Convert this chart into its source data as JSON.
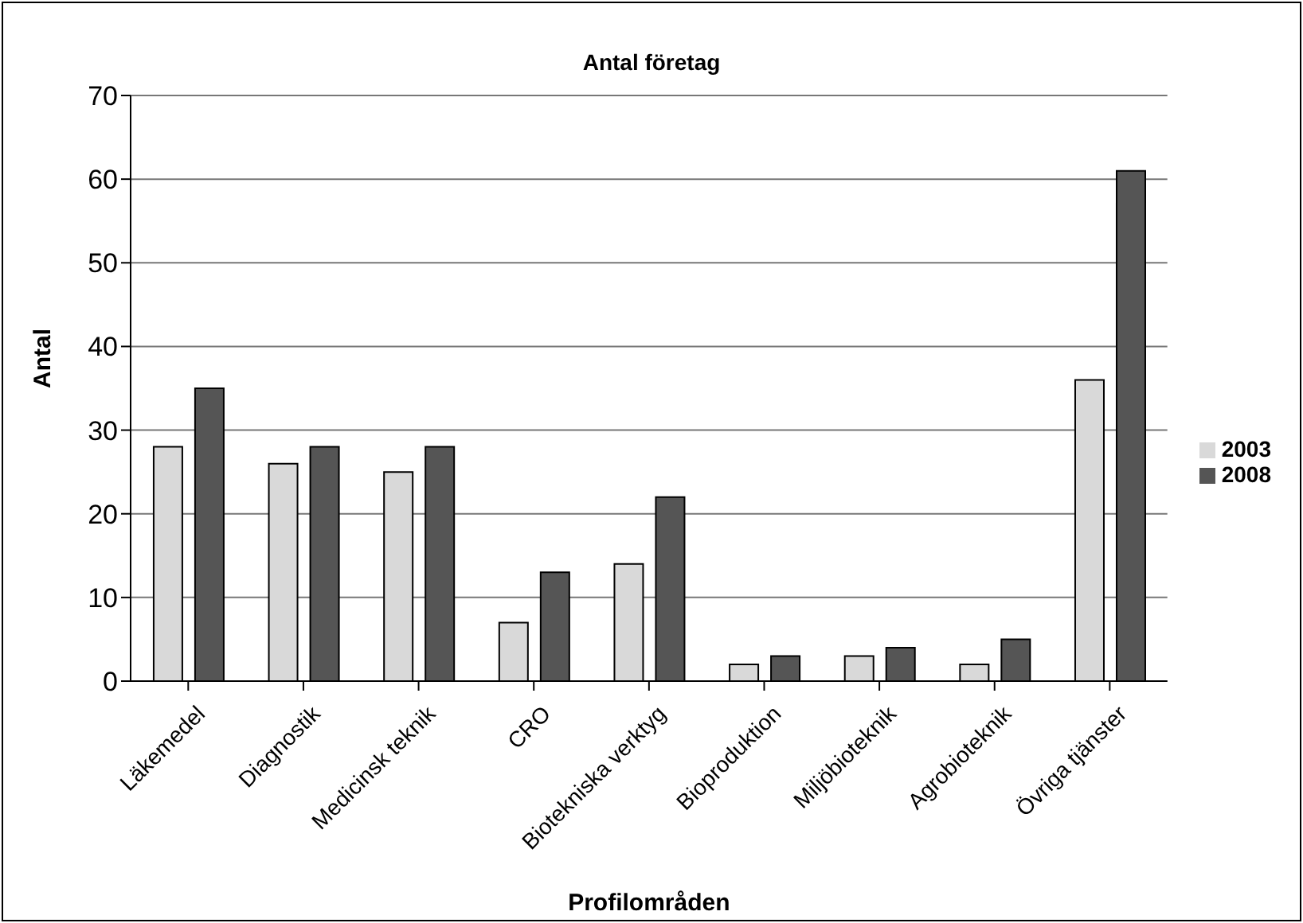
{
  "chart_data": {
    "type": "bar",
    "title": "Antal företag",
    "xlabel": "Profilområden",
    "ylabel": "Antal",
    "categories": [
      "Läkemedel",
      "Diagnostik",
      "Medicinsk teknik",
      "CRO",
      "Biotekniska verktyg",
      "Bioproduktion",
      "Miljöbioteknik",
      "Agrobioteknik",
      "Övriga tjänster"
    ],
    "series": [
      {
        "name": "2003",
        "color": "#d9d9d9",
        "values": [
          28,
          26,
          25,
          7,
          14,
          2,
          3,
          2,
          36
        ]
      },
      {
        "name": "2008",
        "color": "#555555",
        "values": [
          35,
          28,
          28,
          13,
          22,
          3,
          4,
          5,
          61
        ]
      }
    ],
    "ylim": [
      0,
      70
    ],
    "yticks": [
      0,
      10,
      20,
      30,
      40,
      50,
      60,
      70
    ],
    "grid": "y",
    "legend": "right"
  }
}
